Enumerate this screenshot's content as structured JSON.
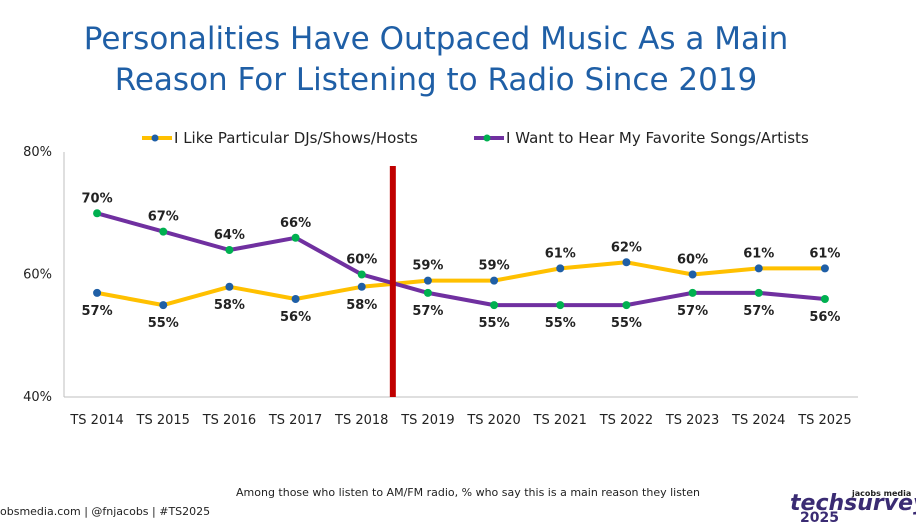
{
  "chart_data": {
    "type": "line",
    "title_lines": [
      "Personalities Have Outpaced Music As a Main",
      "Reason For Listening to Radio Since 2019"
    ],
    "categories": [
      "TS 2014",
      "TS 2015",
      "TS 2016",
      "TS 2017",
      "TS 2018",
      "TS 2019",
      "TS 2020",
      "TS 2021",
      "TS 2022",
      "TS 2023",
      "TS 2024",
      "TS 2025"
    ],
    "ylim": [
      40,
      80
    ],
    "yticks": [
      40,
      60,
      80
    ],
    "ytick_labels": [
      "40%",
      "60%",
      "80%"
    ],
    "series": [
      {
        "name": "I Like Particular DJs/Shows/Hosts",
        "values": [
          57,
          55,
          58,
          56,
          58,
          59,
          59,
          61,
          62,
          60,
          61,
          61
        ],
        "labels": [
          "57%",
          "55%",
          "58%",
          "56%",
          "58%",
          "59%",
          "59%",
          "61%",
          "62%",
          "60%",
          "61%",
          "61%"
        ],
        "line_color": "#ffc000",
        "marker_color": "#1f5fa6"
      },
      {
        "name": "I Want to Hear My Favorite Songs/Artists",
        "values": [
          70,
          67,
          64,
          66,
          60,
          57,
          55,
          55,
          55,
          57,
          57,
          56
        ],
        "labels": [
          "70%",
          "67%",
          "64%",
          "66%",
          "60%",
          "57%",
          "55%",
          "55%",
          "55%",
          "57%",
          "57%",
          "56%"
        ],
        "line_color": "#7030a0",
        "marker_color": "#00b050"
      }
    ],
    "divider_after_category": "TS 2018",
    "divider_color": "#c00000",
    "grid": false,
    "legend_position": "top"
  },
  "footer": {
    "note": "Among those who listen to AM/FM radio, % who say this is a main reason they listen",
    "left": "obsmedia.com  |  @fnjacobs  |  #TS2025",
    "brand_small": "jacobs media",
    "brand_name": "techsurvey",
    "brand_year": "2025"
  }
}
